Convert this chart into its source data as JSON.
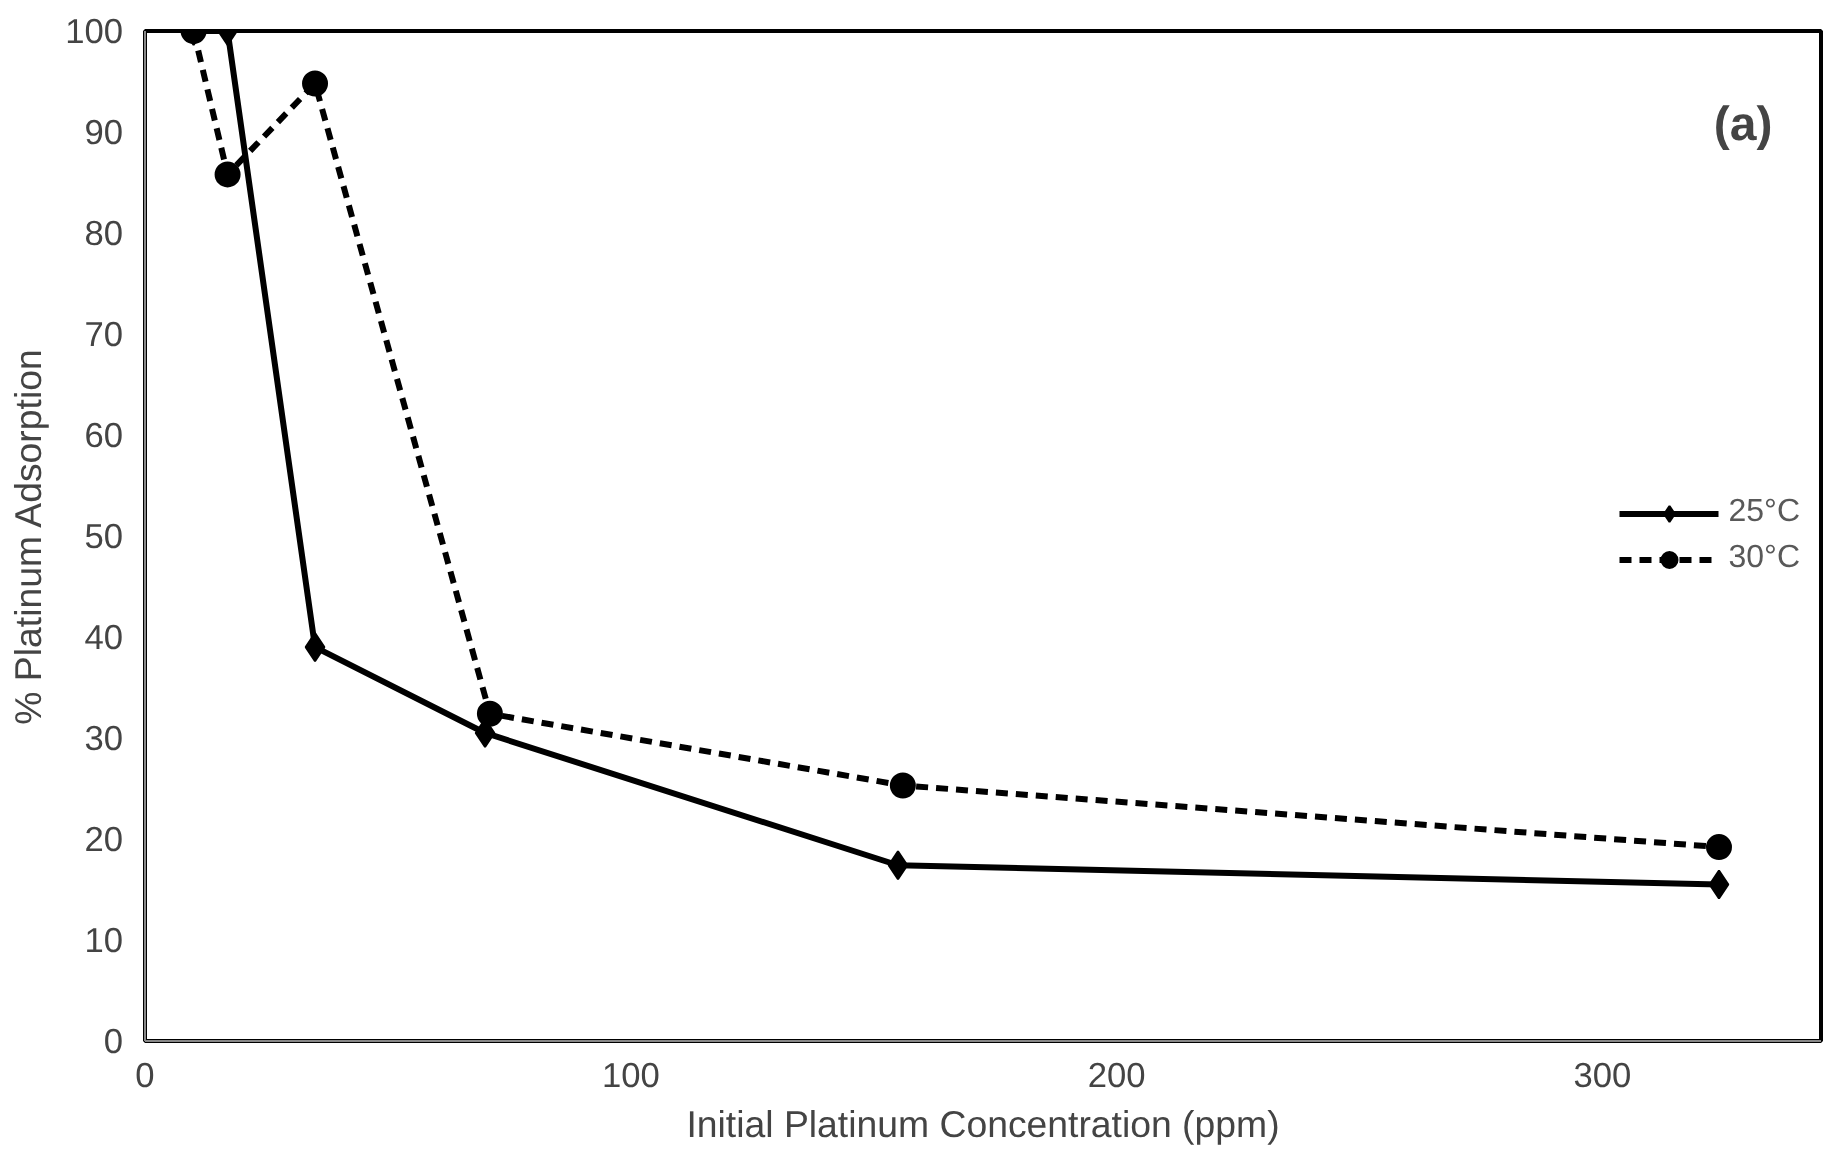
{
  "chart_data": {
    "type": "line",
    "xlabel": "Initial Platinum Concentration (ppm)",
    "ylabel": "% Platinum Adsorption",
    "annotations": [
      "(a)"
    ],
    "xlim": [
      0,
      345
    ],
    "xticks": [
      0,
      100,
      200,
      300
    ],
    "ylim": [
      0,
      100
    ],
    "yticks": [
      0,
      10,
      20,
      30,
      40,
      50,
      60,
      70,
      80,
      90,
      100
    ],
    "grid": false,
    "legend": "right",
    "series": [
      {
        "name": "25°C",
        "color": "#000000",
        "marker": "diamond",
        "line_style": "solid",
        "x": [
          10,
          17,
          35,
          70,
          155,
          324
        ],
        "values": [
          100,
          100,
          39,
          30.5,
          17.4,
          15.5
        ]
      },
      {
        "name": "30°C",
        "color": "#000000",
        "marker": "circle",
        "line_style": "dashed",
        "x": [
          10,
          17,
          35,
          71,
          156,
          324
        ],
        "values": [
          100,
          85.8,
          94.8,
          32.4,
          25.3,
          19.2
        ]
      }
    ]
  }
}
